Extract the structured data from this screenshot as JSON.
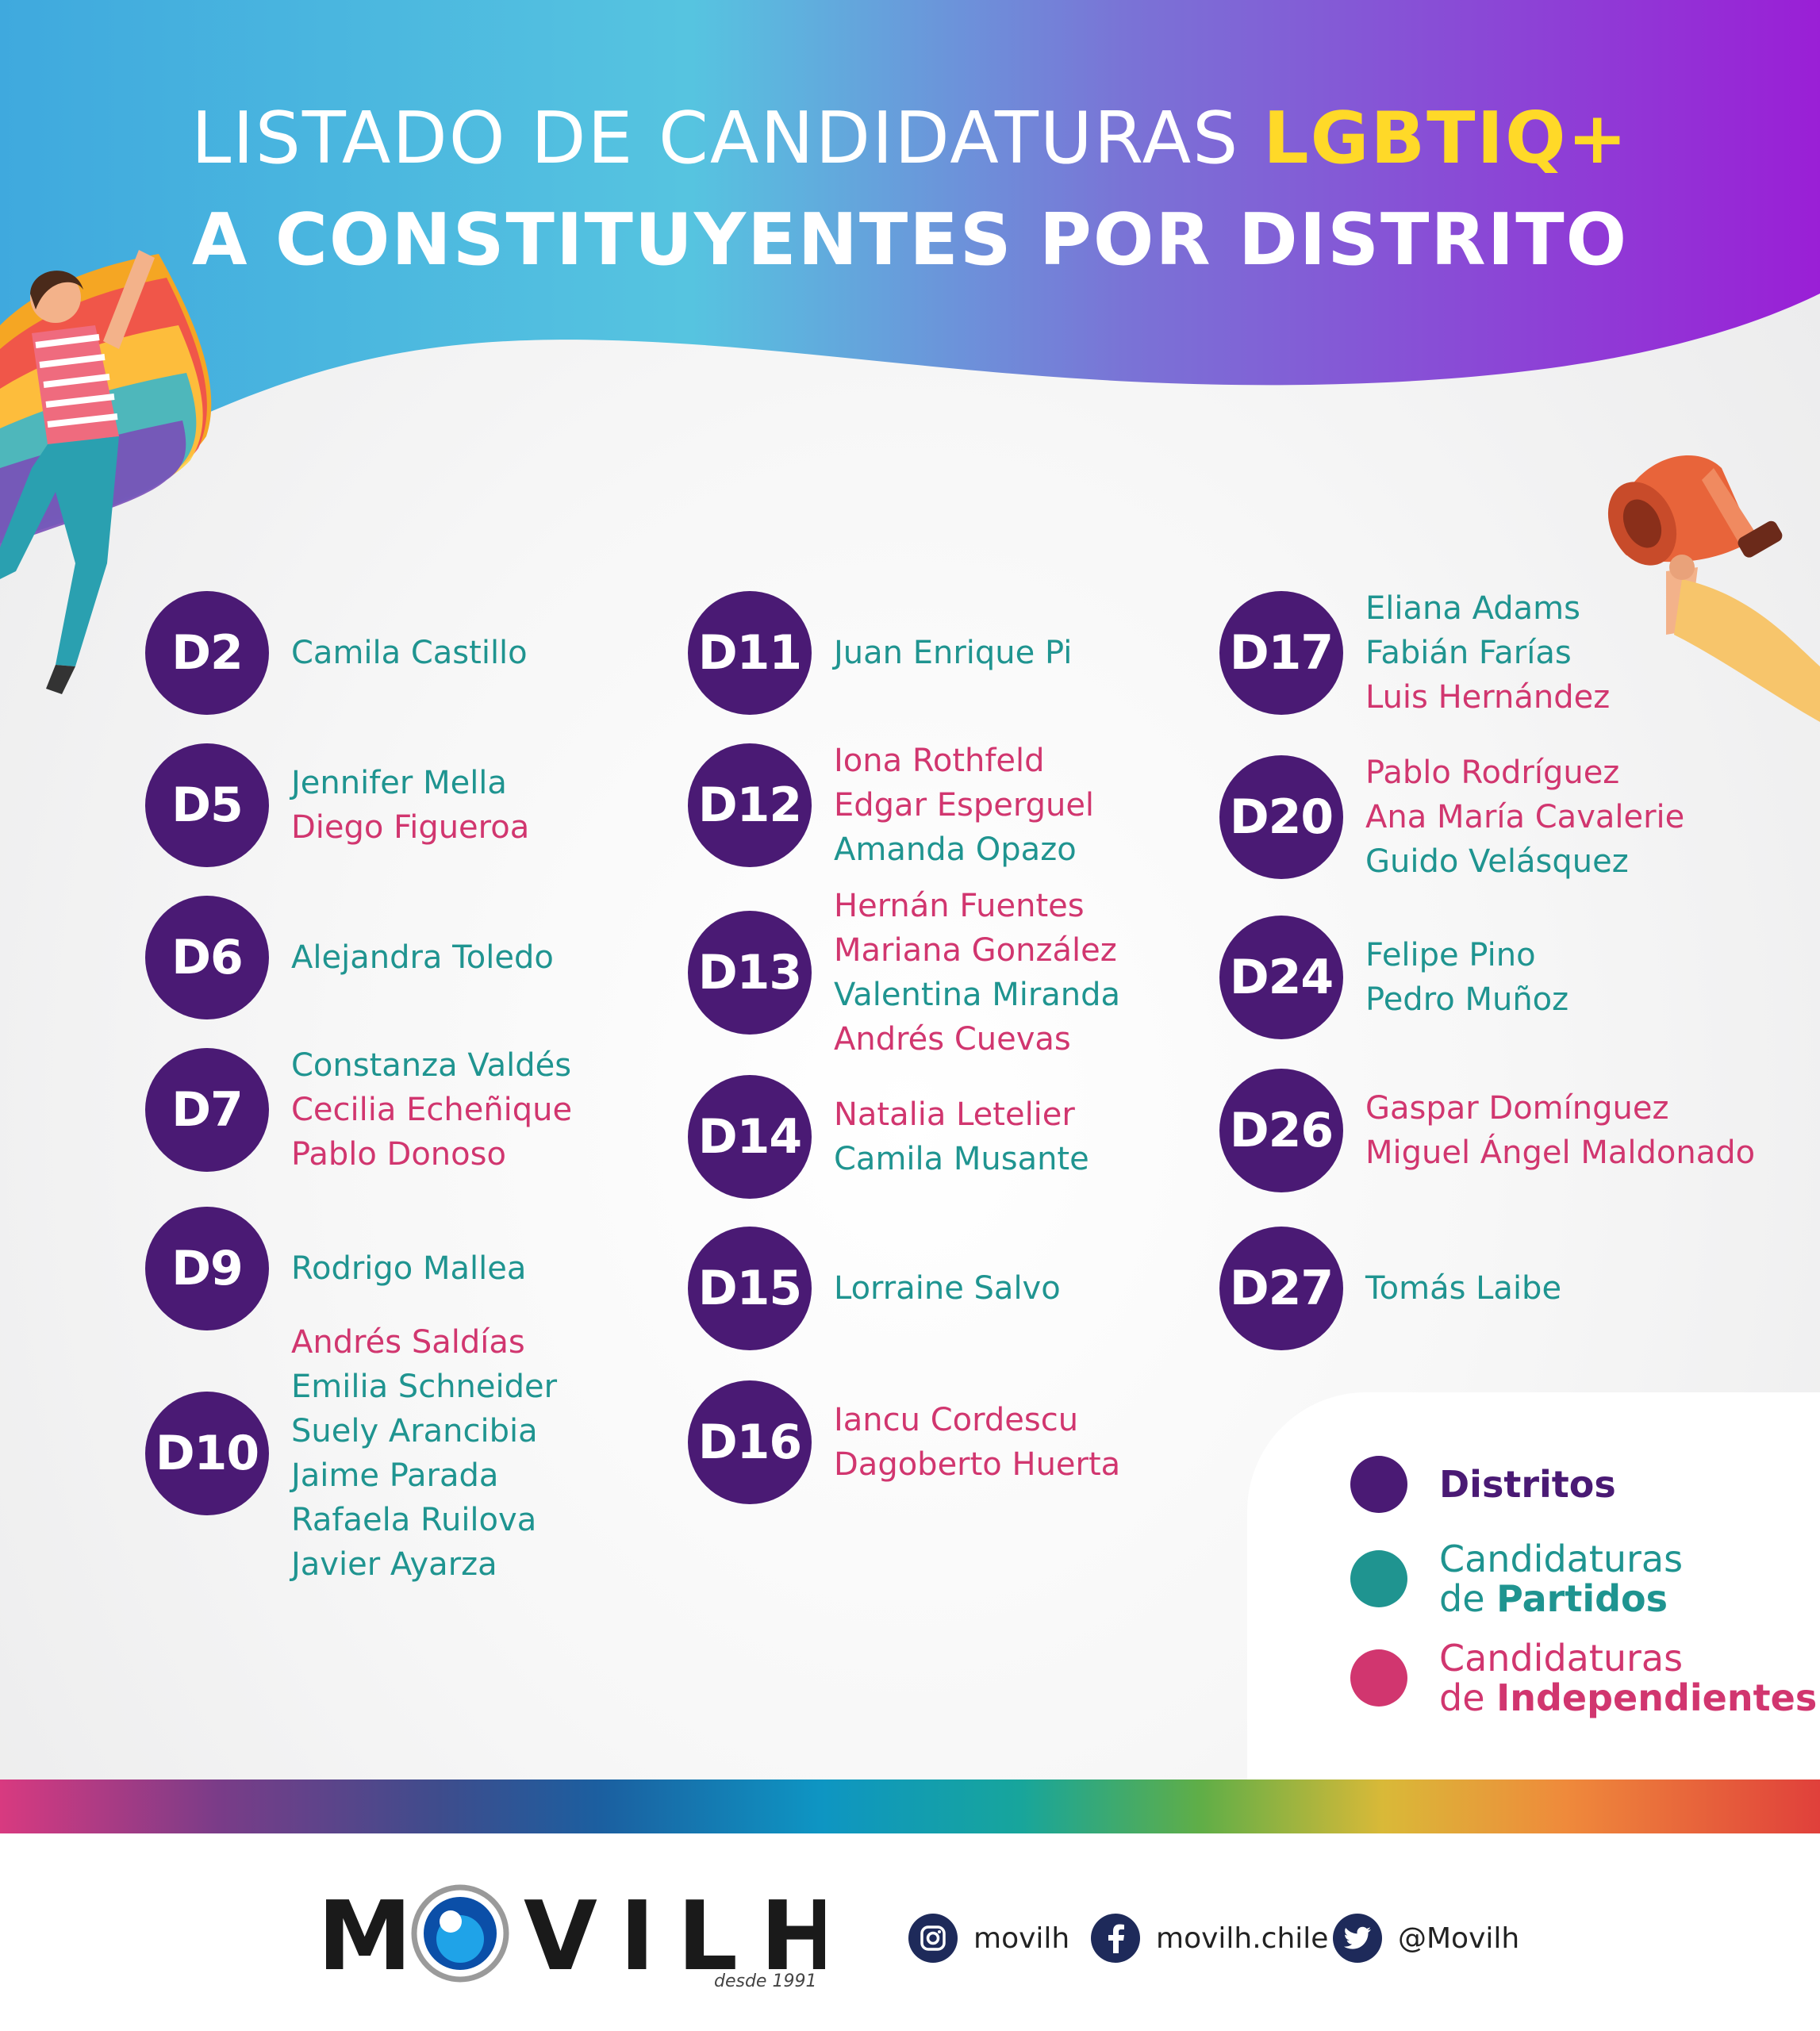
{
  "header": {
    "title_part1": "LISTADO DE CANDIDATURAS",
    "title_accent": "LGBTIQ+",
    "title_line2": "A CONSTITUYENTES POR DISTRITO"
  },
  "colors": {
    "district": "#4a1a74",
    "partido": "#1f9490",
    "independiente": "#d1366f",
    "accent": "#ffd928"
  },
  "districts": [
    {
      "id": "D2",
      "candidates": [
        {
          "name": "Camila Castillo",
          "type": "partido"
        }
      ]
    },
    {
      "id": "D5",
      "candidates": [
        {
          "name": "Jennifer Mella",
          "type": "partido"
        },
        {
          "name": "Diego Figueroa",
          "type": "independiente"
        }
      ]
    },
    {
      "id": "D6",
      "candidates": [
        {
          "name": "Alejandra Toledo",
          "type": "partido"
        }
      ]
    },
    {
      "id": "D7",
      "candidates": [
        {
          "name": "Constanza Valdés",
          "type": "partido"
        },
        {
          "name": "Cecilia Echeñique",
          "type": "independiente"
        },
        {
          "name": "Pablo Donoso",
          "type": "independiente"
        }
      ]
    },
    {
      "id": "D9",
      "candidates": [
        {
          "name": "Rodrigo Mallea",
          "type": "partido"
        }
      ]
    },
    {
      "id": "D10",
      "candidates": [
        {
          "name": "Andrés Saldías",
          "type": "independiente"
        },
        {
          "name": "Emilia Schneider",
          "type": "partido"
        },
        {
          "name": "Suely Arancibia",
          "type": "partido"
        },
        {
          "name": "Jaime Parada",
          "type": "partido"
        },
        {
          "name": "Rafaela Ruilova",
          "type": "partido"
        },
        {
          "name": "Javier Ayarza",
          "type": "partido"
        }
      ]
    },
    {
      "id": "D11",
      "candidates": [
        {
          "name": "Juan Enrique Pi",
          "type": "partido"
        }
      ]
    },
    {
      "id": "D12",
      "candidates": [
        {
          "name": "Iona Rothfeld",
          "type": "independiente"
        },
        {
          "name": "Edgar Esperguel",
          "type": "independiente"
        },
        {
          "name": "Amanda Opazo",
          "type": "partido"
        }
      ]
    },
    {
      "id": "D13",
      "candidates": [
        {
          "name": "Hernán Fuentes",
          "type": "independiente"
        },
        {
          "name": "Mariana González",
          "type": "independiente"
        },
        {
          "name": "Valentina Miranda",
          "type": "partido"
        },
        {
          "name": "Andrés Cuevas",
          "type": "independiente"
        }
      ]
    },
    {
      "id": "D14",
      "candidates": [
        {
          "name": "Natalia Letelier",
          "type": "independiente"
        },
        {
          "name": "Camila Musante",
          "type": "partido"
        }
      ]
    },
    {
      "id": "D15",
      "candidates": [
        {
          "name": "Lorraine Salvo",
          "type": "partido"
        }
      ]
    },
    {
      "id": "D16",
      "candidates": [
        {
          "name": "Iancu Cordescu",
          "type": "independiente"
        },
        {
          "name": "Dagoberto Huerta",
          "type": "independiente"
        }
      ]
    },
    {
      "id": "D17",
      "candidates": [
        {
          "name": "Eliana Adams",
          "type": "partido"
        },
        {
          "name": "Fabián Farías",
          "type": "partido"
        },
        {
          "name": "Luis Hernández",
          "type": "independiente"
        }
      ]
    },
    {
      "id": "D20",
      "candidates": [
        {
          "name": "Pablo Rodríguez",
          "type": "independiente"
        },
        {
          "name": "Ana María Cavalerie",
          "type": "independiente"
        },
        {
          "name": "Guido Velásquez",
          "type": "partido"
        }
      ]
    },
    {
      "id": "D24",
      "candidates": [
        {
          "name": "Felipe Pino",
          "type": "partido"
        },
        {
          "name": "Pedro Muñoz",
          "type": "partido"
        }
      ]
    },
    {
      "id": "D26",
      "candidates": [
        {
          "name": "Gaspar Domínguez",
          "type": "independiente"
        },
        {
          "name": "Miguel Ángel Maldonado",
          "type": "independiente"
        }
      ]
    },
    {
      "id": "D27",
      "candidates": [
        {
          "name": "Tomás Laibe",
          "type": "partido"
        }
      ]
    }
  ],
  "legend": {
    "distritos": "Distritos",
    "partidos_line1": "Candidaturas",
    "partidos_line2_prefix": "de",
    "partidos_line2_bold": "Partidos",
    "independientes_line1": "Candidaturas",
    "independientes_line2_prefix": "de",
    "independientes_line2_bold": "Independientes"
  },
  "footer": {
    "logo_text": "MOVILH",
    "logo_since": "desde 1991",
    "instagram": "movilh",
    "facebook": "movilh.chile",
    "twitter": "@Movilh"
  }
}
